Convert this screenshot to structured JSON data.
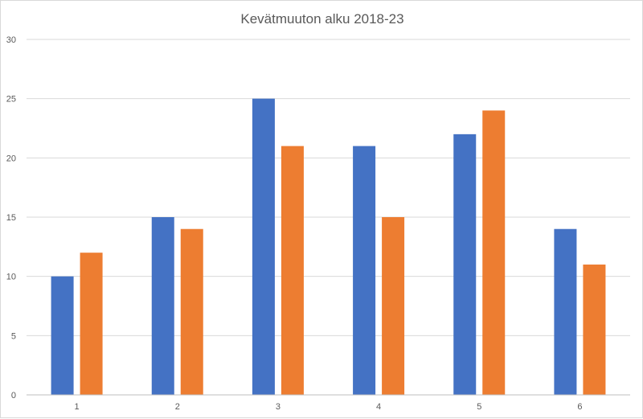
{
  "chart_data": {
    "type": "bar",
    "title": "Kevätmuuton alku 2018-23",
    "categories": [
      "1",
      "2",
      "3",
      "4",
      "5",
      "6"
    ],
    "series": [
      {
        "values": [
          10,
          15,
          25,
          21,
          22,
          14
        ],
        "color": "#4472c4"
      },
      {
        "values": [
          12,
          14,
          21,
          15,
          24,
          11
        ],
        "color": "#ed7d31"
      }
    ],
    "ylim": [
      0,
      30
    ],
    "yticks": [
      0,
      5,
      10,
      15,
      20,
      25,
      30
    ],
    "grid": true,
    "legend": "none"
  }
}
